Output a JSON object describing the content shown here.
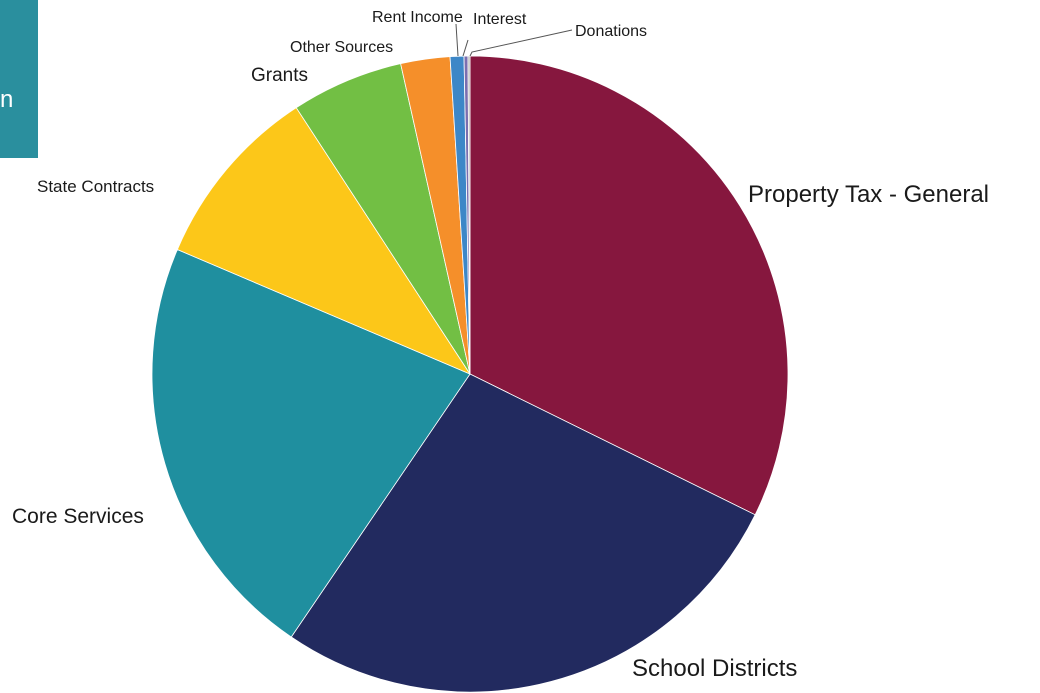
{
  "corner_tab": {
    "text": "n",
    "color": "#2a8f9e"
  },
  "chart_data": {
    "type": "pie",
    "title": "",
    "start_angle_deg": 0,
    "direction": "clockwise",
    "slices": [
      {
        "label": "Property Tax - General",
        "value": 32.3,
        "color": "#86173e"
      },
      {
        "label": "School Districts",
        "value": 27.2,
        "color": "#222a5f"
      },
      {
        "label": "Core Services",
        "value": 21.9,
        "color": "#1f8f9f"
      },
      {
        "label": "State Contracts",
        "value": 9.4,
        "color": "#fcc719"
      },
      {
        "label": "Grants",
        "value": 5.7,
        "color": "#72bf44"
      },
      {
        "label": "Other Sources",
        "value": 2.5,
        "color": "#f58f2a"
      },
      {
        "label": "Rent Income",
        "value": 0.7,
        "color": "#3d87c7"
      },
      {
        "label": "Interest",
        "value": 0.2,
        "color": "#7a6fb0"
      },
      {
        "label": "Donations",
        "value": 0.1,
        "color": "#b0b0b0"
      }
    ]
  }
}
